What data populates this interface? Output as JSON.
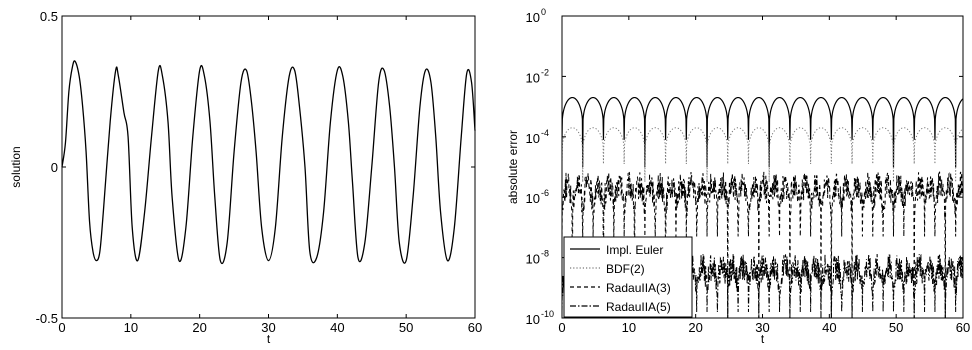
{
  "chart_data": [
    {
      "type": "line",
      "title": "",
      "xlabel": "t",
      "ylabel": "solution",
      "xlim": [
        0,
        60
      ],
      "ylim": [
        -0.5,
        0.5
      ],
      "xticks": [
        "0",
        "10",
        "20",
        "30",
        "40",
        "50",
        "60"
      ],
      "yticks": [
        "-0.5",
        "0",
        "0.5"
      ],
      "grid": false,
      "series": [
        {
          "color": "#000000",
          "style": "solid",
          "x": [
            0,
            0.5,
            1.0,
            1.5,
            1.9,
            2.5,
            3.0,
            3.5,
            4.0,
            4.5,
            5.0,
            5.5,
            6.0,
            7.0,
            7.8,
            8.2,
            9.0,
            9.6,
            10.2,
            11.0,
            12.0,
            13.0,
            14.0,
            14.6,
            15.4,
            16.0,
            17.0,
            18.0,
            19.0,
            20.0,
            20.7,
            21.5,
            22.2,
            23.0,
            24.0,
            25.0,
            26.0,
            26.8,
            27.5,
            28.2,
            29.0,
            30.0,
            31.0,
            32.0,
            33.0,
            33.8,
            34.5,
            35.3,
            36.0,
            37.0,
            38.0,
            39.0,
            40.0,
            40.8,
            41.6,
            42.2,
            43.0,
            44.0,
            45.0,
            46.0,
            46.8,
            47.6,
            48.3,
            49.0,
            50.0,
            51.0,
            52.0,
            52.8,
            53.6,
            54.3,
            55.0,
            56.0,
            57.0,
            58.0,
            58.8,
            59.5,
            60.0
          ],
          "y": [
            0.0,
            0.08,
            0.25,
            0.33,
            0.35,
            0.3,
            0.2,
            0.05,
            -0.18,
            -0.28,
            -0.31,
            -0.28,
            -0.15,
            0.15,
            0.32,
            0.3,
            0.18,
            0.1,
            -0.2,
            -0.31,
            -0.15,
            0.1,
            0.32,
            0.3,
            0.15,
            -0.1,
            -0.31,
            -0.2,
            0.1,
            0.32,
            0.3,
            0.15,
            -0.1,
            -0.31,
            -0.25,
            0.05,
            0.28,
            0.32,
            0.22,
            0.05,
            -0.2,
            -0.31,
            -0.2,
            0.1,
            0.3,
            0.32,
            0.2,
            0.0,
            -0.28,
            -0.3,
            -0.15,
            0.15,
            0.32,
            0.3,
            0.15,
            -0.05,
            -0.3,
            -0.25,
            0.0,
            0.28,
            0.32,
            0.2,
            0.0,
            -0.25,
            -0.31,
            -0.1,
            0.2,
            0.32,
            0.28,
            0.1,
            -0.15,
            -0.31,
            -0.2,
            0.1,
            0.31,
            0.28,
            0.12
          ]
        }
      ]
    },
    {
      "type": "line",
      "title": "",
      "xlabel": "t",
      "ylabel": "absolute error",
      "xlim": [
        0,
        60
      ],
      "ylim": [
        1e-10,
        1
      ],
      "yscale": "log",
      "xticks": [
        "0",
        "10",
        "20",
        "30",
        "40",
        "50",
        "60"
      ],
      "yticks": [
        {
          "base": "10",
          "exp": "-10",
          "value": -10
        },
        {
          "base": "10",
          "exp": "-8",
          "value": -8
        },
        {
          "base": "10",
          "exp": "-6",
          "value": -6
        },
        {
          "base": "10",
          "exp": "-4",
          "value": -4
        },
        {
          "base": "10",
          "exp": "-2",
          "value": -2
        },
        {
          "base": "10",
          "exp": "0",
          "value": 0
        }
      ],
      "grid": false,
      "legend": "bottom-left",
      "series": [
        {
          "name": "Impl. Euler",
          "color": "#000000",
          "style": "solid",
          "log10_peak": -2.7,
          "log10_dip": -3.8,
          "log10_deep_dip": -5.0,
          "period": 3.1
        },
        {
          "name": "BDF(2)",
          "color": "#777777",
          "style": "dotted",
          "log10_peak": -3.7,
          "log10_dip": -4.6,
          "log10_deep_dip": -5.5,
          "period": 3.1
        },
        {
          "name": "RadauIIA(3)",
          "color": "#000000",
          "style": "dashed",
          "log10_peak": -5.6,
          "log10_dip": -7.0,
          "log10_deep_dip": -10.0,
          "period": 1.55
        },
        {
          "name": "RadauIIA(5)",
          "color": "#000000",
          "style": "dashdot",
          "log10_peak": -8.3,
          "log10_dip": -9.5,
          "log10_deep_dip": -10.0,
          "period": 1.55
        }
      ]
    }
  ]
}
